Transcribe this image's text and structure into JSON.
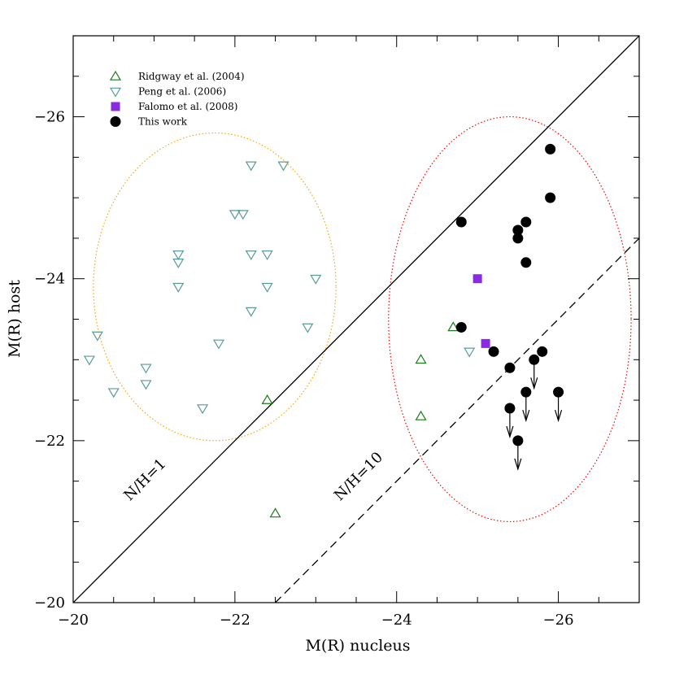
{
  "chart_data": {
    "type": "scatter",
    "xlabel": "M(R) nucleus",
    "ylabel": "M(R) host",
    "xlim": [
      -20,
      -27
    ],
    "ylim": [
      -20,
      -27
    ],
    "x_ticks": [
      -20,
      -22,
      -24,
      -26
    ],
    "y_ticks": [
      -20,
      -22,
      -24,
      -26
    ],
    "x_tick_labels": [
      "−20",
      "−22",
      "−24",
      "−26"
    ],
    "y_tick_labels": [
      "−20",
      "−22",
      "−24",
      "−26"
    ],
    "legend_position": "top-left",
    "series": [
      {
        "name": "Ridgway et al. (2004)",
        "marker": "triangle-up",
        "color": "#1a7a1a",
        "filled": false,
        "points": [
          {
            "x": -22.4,
            "y": -22.5
          },
          {
            "x": -22.5,
            "y": -21.1
          },
          {
            "x": -24.3,
            "y": -23.0
          },
          {
            "x": -24.3,
            "y": -22.3
          },
          {
            "x": -24.7,
            "y": -23.4
          }
        ]
      },
      {
        "name": "Peng et al. (2006)",
        "marker": "triangle-down",
        "color": "#5a9a9a",
        "filled": false,
        "points": [
          {
            "x": -20.2,
            "y": -23.0
          },
          {
            "x": -20.3,
            "y": -23.3
          },
          {
            "x": -20.5,
            "y": -22.6
          },
          {
            "x": -20.9,
            "y": -22.9
          },
          {
            "x": -20.9,
            "y": -22.7
          },
          {
            "x": -21.3,
            "y": -24.3
          },
          {
            "x": -21.3,
            "y": -24.2
          },
          {
            "x": -21.3,
            "y": -23.9
          },
          {
            "x": -21.6,
            "y": -22.4
          },
          {
            "x": -21.8,
            "y": -23.2
          },
          {
            "x": -22.0,
            "y": -24.8
          },
          {
            "x": -22.1,
            "y": -24.8
          },
          {
            "x": -22.2,
            "y": -25.4
          },
          {
            "x": -22.2,
            "y": -24.3
          },
          {
            "x": -22.2,
            "y": -23.6
          },
          {
            "x": -22.4,
            "y": -24.3
          },
          {
            "x": -22.4,
            "y": -23.9
          },
          {
            "x": -22.6,
            "y": -25.4
          },
          {
            "x": -22.9,
            "y": -23.4
          },
          {
            "x": -23.0,
            "y": -24.0
          },
          {
            "x": -24.9,
            "y": -23.1
          }
        ]
      },
      {
        "name": "Falomo et al. (2008)",
        "marker": "square",
        "color": "#8a2be2",
        "filled": true,
        "points": [
          {
            "x": -25.0,
            "y": -24.0
          },
          {
            "x": -25.1,
            "y": -23.2
          }
        ]
      },
      {
        "name": "This work",
        "marker": "circle",
        "color": "#000000",
        "filled": true,
        "points": [
          {
            "x": -24.8,
            "y": -24.7
          },
          {
            "x": -24.8,
            "y": -23.4
          },
          {
            "x": -25.2,
            "y": -23.1
          },
          {
            "x": -25.4,
            "y": -22.9
          },
          {
            "x": -25.4,
            "y": -22.4,
            "upper_limit": true
          },
          {
            "x": -25.5,
            "y": -24.6
          },
          {
            "x": -25.5,
            "y": -24.5
          },
          {
            "x": -25.5,
            "y": -22.0,
            "upper_limit": true
          },
          {
            "x": -25.6,
            "y": -24.7
          },
          {
            "x": -25.6,
            "y": -24.2
          },
          {
            "x": -25.6,
            "y": -22.6,
            "upper_limit": true
          },
          {
            "x": -25.7,
            "y": -23.0,
            "upper_limit": true
          },
          {
            "x": -25.8,
            "y": -23.1
          },
          {
            "x": -25.9,
            "y": -25.6
          },
          {
            "x": -25.9,
            "y": -25.0
          },
          {
            "x": -26.0,
            "y": -22.6,
            "upper_limit": true
          }
        ]
      }
    ],
    "reference_lines": [
      {
        "label": "N/H=1",
        "style": "solid",
        "offset": 0,
        "label_x": -20.7,
        "label_y": -21.25
      },
      {
        "label": "N/H=10",
        "style": "dashed",
        "offset": 2.5,
        "label_x": -23.3,
        "label_y": -21.25
      }
    ],
    "ellipses": [
      {
        "name": "peng-region",
        "color": "#ffa500",
        "cx": -21.75,
        "cy": -23.9,
        "rx": 1.5,
        "ry": 1.9
      },
      {
        "name": "this-work-region",
        "color": "#ff0000",
        "cx": -25.4,
        "cy": -23.5,
        "rx": 1.5,
        "ry": 2.5
      }
    ]
  }
}
